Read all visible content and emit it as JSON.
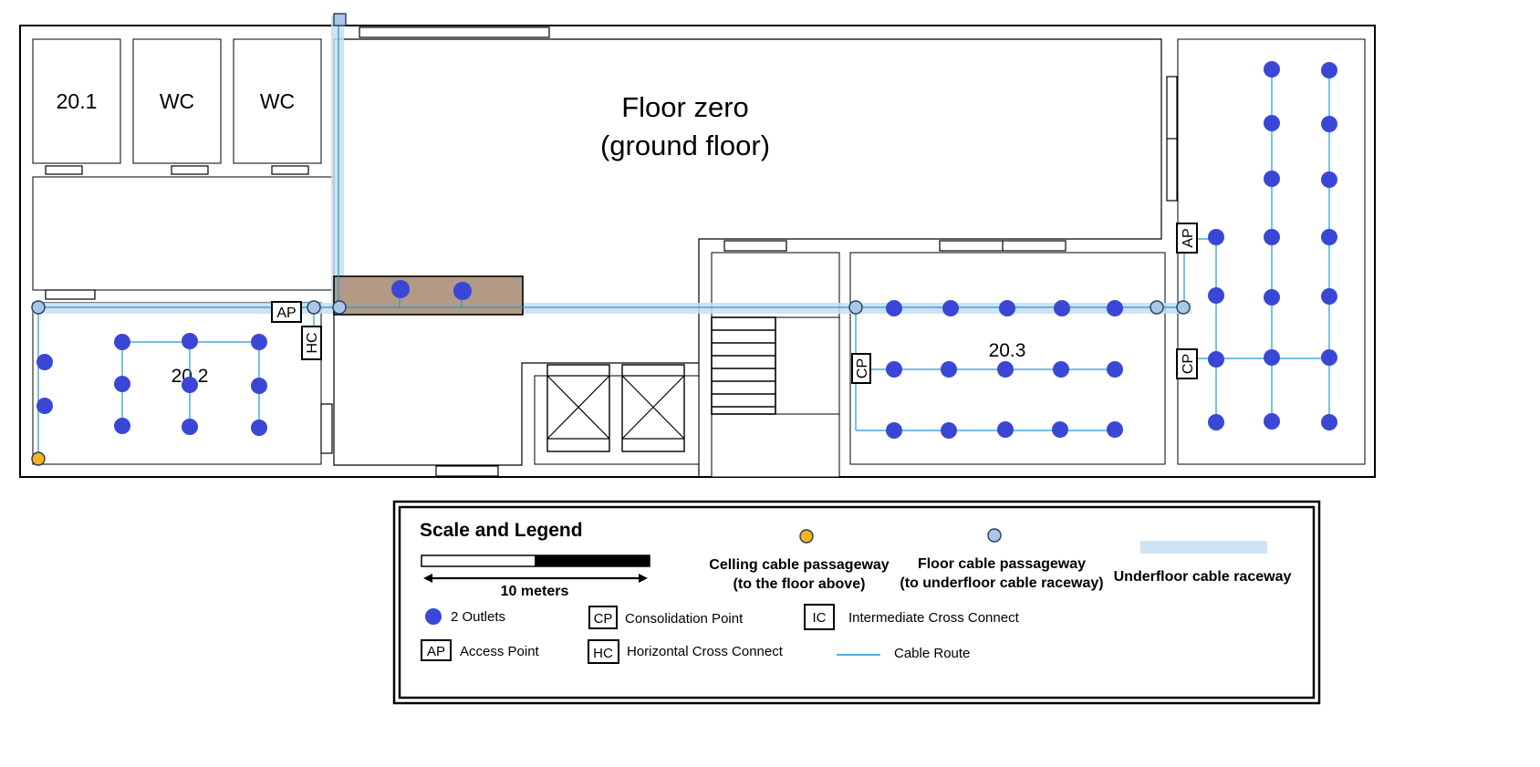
{
  "floor_title": [
    "Floor zero",
    "(ground floor)"
  ],
  "rooms": {
    "room_20_1": "20.1",
    "wc_1": "WC",
    "wc_2": "WC",
    "room_20_2": "20.2",
    "room_20_3": "20.3"
  },
  "tags": {
    "ap": "AP",
    "hc": "HC",
    "cp": "CP"
  },
  "legend": {
    "title": "Scale and Legend",
    "scale_label": "10 meters",
    "ceiling_pass": [
      "Celling cable passageway",
      "(to the floor above)"
    ],
    "floor_pass": [
      "Floor cable passageway",
      "(to underfloor cable raceway)"
    ],
    "raceway": "Underfloor cable raceway",
    "outlets": "2 Outlets",
    "cp_box": "CP",
    "cp_label": "Consolidation Point",
    "ic_box": "IC",
    "ic_label": "Intermediate Cross Connect",
    "ap_box": "AP",
    "ap_label": "Access Point",
    "hc_box": "HC",
    "hc_label": "Horizontal Cross Connect",
    "cable_label": "Cable Route"
  },
  "colors": {
    "outlet": "#3a47d6",
    "cable_route": "#1a9ad6",
    "raceway": "#c6def2",
    "ceiling_passageway": "#f3b51b",
    "floor_passageway": "#a9c8e8",
    "reception_desk": "#b29a86"
  },
  "icons": [
    "outlet-icon",
    "floor-passageway-icon",
    "ceiling-passageway-icon",
    "stairs-icon",
    "elevator-icon"
  ]
}
